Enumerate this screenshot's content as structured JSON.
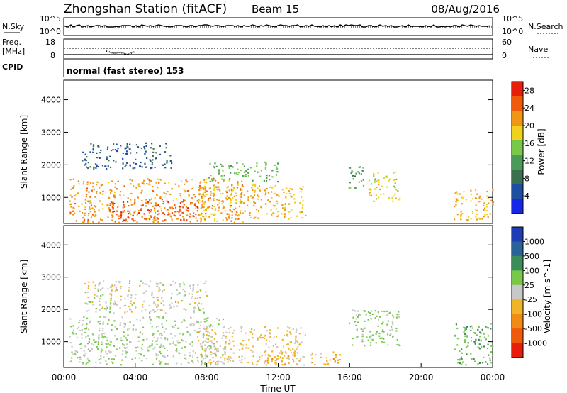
{
  "header": {
    "title": "Zhongshan Station (fitACF)",
    "beam": "Beam 15",
    "date": "08/Aug/2016"
  },
  "top_panels": {
    "nsky_label": "N.Sky",
    "nsky_ticks": [
      "10^5",
      "10^0"
    ],
    "nsearch_label": "N.Search",
    "nsearch_ticks": [
      "10^5",
      "10^0"
    ],
    "freq_label": "Freq.",
    "freq_unit": "[MHz]",
    "freq_ticks": [
      "18",
      "8"
    ],
    "nave_label": "Nave",
    "nave_ticks": [
      "60",
      "0"
    ],
    "cpid_label": "CPID",
    "cpid_text": "normal (fast stereo) 153"
  },
  "x_axis": {
    "label": "Time UT",
    "ticks": [
      "00:00",
      "04:00",
      "08:00",
      "12:00",
      "16:00",
      "20:00",
      "00:00"
    ]
  },
  "colors": {
    "power": [
      "#1428e6",
      "#1e4ea0",
      "#3c6e50",
      "#4a9a5c",
      "#78c84a",
      "#f0d21e",
      "#f09614",
      "#f05a0a",
      "#e61e0a"
    ],
    "velocity": [
      "#e61e0a",
      "#f05a0a",
      "#f08c14",
      "#f0b428",
      "#c8c8c8",
      "#78c84a",
      "#3c8c5a",
      "#2a6496",
      "#1e3cb4"
    ]
  },
  "chart_data": [
    {
      "type": "heatmap",
      "title": "",
      "ylabel": "Slant Range [km]",
      "yticks": [
        "1000",
        "2000",
        "3000",
        "4000"
      ],
      "xlabel": "",
      "xlim": [
        0,
        24
      ],
      "ylim": [
        200,
        4600
      ],
      "colorbar": {
        "label": "Power [dB]",
        "ticks": [
          "4",
          "8",
          "12",
          "16",
          "20",
          "24",
          "28"
        ],
        "range": [
          0,
          30
        ]
      },
      "regions": [
        {
          "t": [
            0.3,
            10.0
          ],
          "r": [
            250,
            1600
          ],
          "level": "high",
          "value": 22
        },
        {
          "t": [
            1.0,
            6.0
          ],
          "r": [
            1900,
            2700
          ],
          "level": "low",
          "value": 6
        },
        {
          "t": [
            2.5,
            7.5
          ],
          "r": [
            300,
            900
          ],
          "level": "high",
          "value": 26
        },
        {
          "t": [
            7.5,
            13.5
          ],
          "r": [
            300,
            1400
          ],
          "level": "high",
          "value": 20
        },
        {
          "t": [
            8.0,
            12.0
          ],
          "r": [
            1500,
            2100
          ],
          "level": "mid",
          "value": 14
        },
        {
          "t": [
            15.9,
            17.0
          ],
          "r": [
            1300,
            2000
          ],
          "level": "mid",
          "value": 12
        },
        {
          "t": [
            17.0,
            18.8
          ],
          "r": [
            900,
            1800
          ],
          "level": "mid",
          "value": 18
        },
        {
          "t": [
            21.8,
            24.0
          ],
          "r": [
            300,
            1300
          ],
          "level": "high",
          "value": 20
        }
      ]
    },
    {
      "type": "heatmap",
      "title": "",
      "ylabel": "Slant Range [km]",
      "yticks": [
        "1000",
        "2000",
        "3000",
        "4000"
      ],
      "xlabel": "Time UT",
      "xlim": [
        0,
        24
      ],
      "ylim": [
        200,
        4600
      ],
      "colorbar": {
        "label": "Velocity [m s^-1]",
        "ticks": [
          "1000",
          "500",
          "100",
          "25",
          "-25",
          "-100",
          "-500",
          "-1000"
        ],
        "range": [
          -1000,
          1000
        ]
      },
      "regions": [
        {
          "t": [
            0.3,
            9.0
          ],
          "r": [
            300,
            1800
          ],
          "level": "pos",
          "value": 100
        },
        {
          "t": [
            1.0,
            8.0
          ],
          "r": [
            1900,
            2900
          ],
          "level": "zero",
          "value": 0
        },
        {
          "t": [
            7.5,
            13.5
          ],
          "r": [
            300,
            1500
          ],
          "level": "neg",
          "value": -150
        },
        {
          "t": [
            11.0,
            15.5
          ],
          "r": [
            300,
            700
          ],
          "level": "neg",
          "value": -200
        },
        {
          "t": [
            15.9,
            18.8
          ],
          "r": [
            900,
            2000
          ],
          "level": "pos",
          "value": 150
        },
        {
          "t": [
            21.8,
            24.0
          ],
          "r": [
            300,
            1600
          ],
          "level": "pos",
          "value": 300
        }
      ]
    }
  ]
}
